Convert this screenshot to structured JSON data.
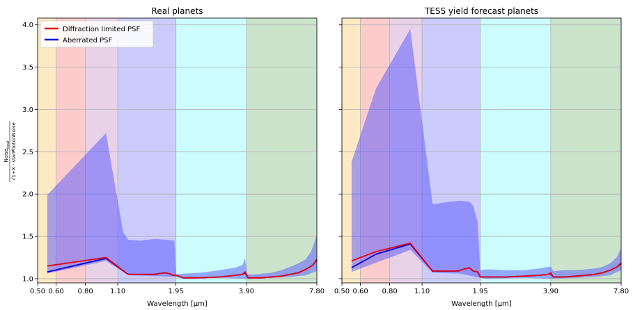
{
  "figure": {
    "ylabel_num": "Noise",
    "ylabel_num_sub": "total",
    "ylabel_den": "√1+X · starPhotonNoise"
  },
  "legend": {
    "items": [
      {
        "label": "Diffraction limited PSF",
        "color": "#e8000b"
      },
      {
        "label": "Aberrated PSF",
        "color": "#0000e0"
      }
    ]
  },
  "bands": [
    {
      "from": 0.5,
      "to": 0.6,
      "color": "#fde9c4"
    },
    {
      "from": 0.6,
      "to": 0.8,
      "color": "#fccccc"
    },
    {
      "from": 0.8,
      "to": 1.1,
      "color": "#e8d2e8"
    },
    {
      "from": 1.1,
      "to": 1.95,
      "color": "#ccccfc"
    },
    {
      "from": 1.95,
      "to": 3.9,
      "color": "#ccfcfc"
    },
    {
      "from": 3.9,
      "to": 7.8,
      "color": "#cce4cc"
    }
  ],
  "chart_data": [
    {
      "type": "line",
      "title": "Real planets",
      "xlabel": "Wavelength [μm]",
      "xscale": "log",
      "xlim": [
        0.5,
        7.8
      ],
      "ylim": [
        0.95,
        4.08
      ],
      "xticks": [
        0.5,
        0.6,
        0.8,
        1.1,
        1.95,
        3.9,
        7.8
      ],
      "xticklabels": [
        "0.50",
        "0.60",
        "0.80",
        "1.10",
        "1.95",
        "3.90",
        "7.80"
      ],
      "yticks": [
        1.0,
        1.5,
        2.0,
        2.5,
        3.0,
        3.5,
        4.0
      ],
      "yticklabels": [
        "1.0",
        "1.5",
        "2.0",
        "2.5",
        "3.0",
        "3.5",
        "4.0"
      ],
      "grid": true,
      "legend_position": "top-left",
      "series": [
        {
          "name": "Diffraction limited PSF",
          "color": "#e8000b",
          "x": [
            0.55,
            0.98,
            1.22,
            1.57,
            1.65,
            1.75,
            1.82,
            1.9,
            1.95,
            2.1,
            2.4,
            3.0,
            3.5,
            3.75,
            3.85,
            3.97,
            4.5,
            5.0,
            5.5,
            6.0,
            6.5,
            7.0,
            7.5,
            7.8
          ],
          "y": [
            1.15,
            1.25,
            1.05,
            1.05,
            1.06,
            1.07,
            1.06,
            1.04,
            1.04,
            1.01,
            1.01,
            1.02,
            1.04,
            1.05,
            1.08,
            1.01,
            1.01,
            1.02,
            1.03,
            1.05,
            1.07,
            1.11,
            1.16,
            1.23
          ]
        },
        {
          "name": "Aberrated PSF",
          "color": "#0000e0",
          "x": [
            0.55,
            0.98,
            1.22,
            1.57,
            1.65,
            1.75,
            1.82,
            1.9,
            1.95,
            2.1,
            2.4,
            3.0,
            3.5,
            3.75,
            3.85,
            3.97,
            4.5,
            5.0,
            5.5,
            6.0,
            6.5,
            7.0,
            7.5,
            7.8
          ],
          "y": [
            1.08,
            1.24,
            1.05,
            1.05,
            1.06,
            1.07,
            1.06,
            1.04,
            1.04,
            1.01,
            1.01,
            1.02,
            1.04,
            1.05,
            1.07,
            1.01,
            1.01,
            1.02,
            1.03,
            1.05,
            1.07,
            1.11,
            1.16,
            1.22
          ]
        }
      ],
      "band_upper": {
        "x": [
          0.55,
          0.98,
          1.16,
          1.22,
          1.35,
          1.6,
          1.75,
          1.92,
          1.95,
          2.1,
          2.5,
          3.0,
          3.5,
          3.75,
          3.85,
          3.93,
          4.2,
          5.0,
          5.5,
          6.0,
          6.5,
          7.0,
          7.4,
          7.8
        ],
        "y": [
          1.99,
          2.72,
          1.55,
          1.46,
          1.45,
          1.47,
          1.46,
          1.45,
          1.05,
          1.06,
          1.07,
          1.1,
          1.13,
          1.16,
          1.24,
          1.05,
          1.05,
          1.07,
          1.1,
          1.14,
          1.18,
          1.23,
          1.33,
          1.52
        ]
      },
      "band_lower": {
        "x": [
          0.55,
          0.98,
          1.22,
          1.6,
          1.95,
          2.1,
          3.0,
          3.9,
          5.0,
          6.0,
          7.0,
          7.8
        ],
        "y": [
          1.06,
          1.21,
          1.04,
          1.03,
          1.02,
          1.0,
          1.01,
          1.0,
          1.01,
          1.02,
          1.04,
          1.09
        ]
      }
    },
    {
      "type": "line",
      "title": "TESS yield forecast planets",
      "xlabel": "Wavelength [μm]",
      "xscale": "log",
      "xlim": [
        0.5,
        7.8
      ],
      "ylim": [
        0.95,
        4.08
      ],
      "xticks": [
        0.5,
        0.6,
        0.8,
        1.1,
        1.95,
        3.9,
        7.8
      ],
      "xticklabels": [
        "0.50",
        "0.60",
        "0.80",
        "1.10",
        "1.95",
        "3.90",
        "7.80"
      ],
      "yticks": [
        1.0,
        1.5,
        2.0,
        2.5,
        3.0,
        3.5,
        4.0
      ],
      "yticklabels": [
        "",
        "",
        "",
        "",
        "",
        "",
        ""
      ],
      "grid": true,
      "series": [
        {
          "name": "Diffraction limited PSF",
          "color": "#e8000b",
          "x": [
            0.55,
            0.7,
            0.98,
            1.22,
            1.57,
            1.65,
            1.75,
            1.82,
            1.9,
            1.95,
            2.1,
            2.5,
            3.0,
            3.5,
            3.8,
            3.9,
            4.0,
            4.5,
            5.0,
            5.5,
            6.0,
            6.5,
            7.0,
            7.5,
            7.8
          ],
          "y": [
            1.21,
            1.32,
            1.42,
            1.09,
            1.09,
            1.11,
            1.13,
            1.09,
            1.08,
            1.02,
            1.02,
            1.02,
            1.03,
            1.04,
            1.05,
            1.07,
            1.02,
            1.02,
            1.03,
            1.04,
            1.05,
            1.07,
            1.1,
            1.14,
            1.19
          ]
        },
        {
          "name": "Aberrated PSF",
          "color": "#0000e0",
          "x": [
            0.55,
            0.7,
            0.98,
            1.22,
            1.57,
            1.65,
            1.75,
            1.82,
            1.9,
            1.95,
            2.1,
            2.5,
            3.0,
            3.5,
            3.8,
            3.9,
            4.0,
            4.5,
            5.0,
            5.5,
            6.0,
            6.5,
            7.0,
            7.5,
            7.8
          ],
          "y": [
            1.13,
            1.29,
            1.41,
            1.09,
            1.09,
            1.11,
            1.13,
            1.09,
            1.08,
            1.02,
            1.02,
            1.02,
            1.03,
            1.04,
            1.05,
            1.06,
            1.02,
            1.02,
            1.03,
            1.04,
            1.05,
            1.07,
            1.1,
            1.14,
            1.18
          ]
        }
      ],
      "band_upper": {
        "x": [
          0.55,
          0.7,
          0.98,
          1.22,
          1.3,
          1.45,
          1.6,
          1.75,
          1.82,
          1.9,
          1.95,
          2.1,
          2.5,
          3.0,
          3.5,
          3.8,
          3.9,
          4.0,
          4.5,
          5.0,
          5.5,
          6.0,
          6.5,
          7.0,
          7.5,
          7.8
        ],
        "y": [
          2.38,
          3.25,
          3.95,
          1.88,
          1.89,
          1.91,
          1.92,
          1.91,
          1.86,
          1.67,
          1.1,
          1.11,
          1.1,
          1.1,
          1.12,
          1.14,
          1.14,
          1.09,
          1.1,
          1.1,
          1.11,
          1.12,
          1.14,
          1.18,
          1.26,
          1.37
        ]
      },
      "band_lower": {
        "x": [
          0.55,
          0.98,
          1.22,
          1.6,
          1.95,
          2.1,
          3.0,
          3.9,
          5.0,
          6.0,
          7.0,
          7.8
        ],
        "y": [
          1.08,
          1.34,
          1.07,
          1.06,
          1.01,
          1.0,
          1.01,
          1.0,
          1.01,
          1.02,
          1.04,
          1.1
        ]
      }
    }
  ]
}
